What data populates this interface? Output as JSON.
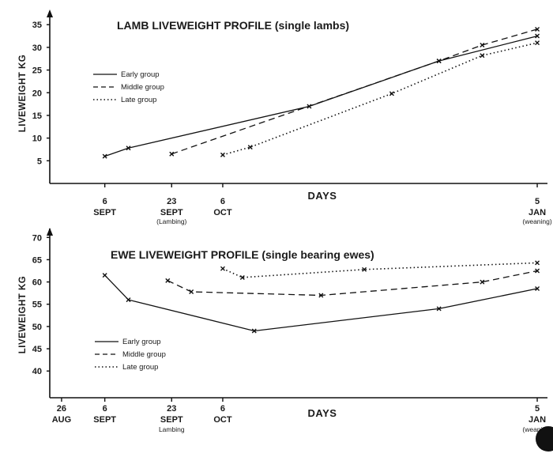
{
  "chart_data": [
    {
      "type": "line",
      "title": "LAMB LIVEWEIGHT PROFILE (single lambs)",
      "ylabel": "LIVEWEIGHT KG",
      "xlabel": "DAYS",
      "ylim": [
        0,
        38
      ],
      "yticks": [
        5,
        10,
        15,
        20,
        25,
        30,
        35
      ],
      "xlim": [
        -3,
        123
      ],
      "xticks": [
        {
          "x": 11,
          "label": "6",
          "label2": "SEPT",
          "sub": ""
        },
        {
          "x": 28,
          "label": "23",
          "label2": "SEPT",
          "sub": "(Lambing)"
        },
        {
          "x": 41,
          "label": "6",
          "label2": "OCT",
          "sub": ""
        },
        {
          "x": 121,
          "label": "5",
          "label2": "JAN",
          "sub": "(weaning)"
        }
      ],
      "legend": [
        "Early group",
        "Middle group",
        "Late group"
      ],
      "series": [
        {
          "name": "Early group",
          "style": "solid",
          "x": [
            11,
            17,
            63,
            96,
            121
          ],
          "y": [
            6,
            7.8,
            17,
            27,
            32.5
          ]
        },
        {
          "name": "Middle group",
          "style": "dashed",
          "x": [
            28,
            96,
            107,
            121
          ],
          "y": [
            6.5,
            27,
            30.5,
            34
          ]
        },
        {
          "name": "Late group",
          "style": "dotted",
          "x": [
            41,
            48,
            84,
            107,
            121
          ],
          "y": [
            6.3,
            8,
            19.8,
            28.2,
            31
          ]
        }
      ]
    },
    {
      "type": "line",
      "title": "EWE LIVEWEIGHT PROFILE (single bearing ewes)",
      "ylabel": "LIVEWEIGHT KG",
      "xlabel": "DAYS",
      "ylim": [
        34,
        72
      ],
      "yticks": [
        40,
        45,
        50,
        55,
        60,
        65,
        70
      ],
      "xlim": [
        -3,
        123
      ],
      "xticks": [
        {
          "x": 0,
          "label": "26",
          "label2": "AUG",
          "sub": ""
        },
        {
          "x": 11,
          "label": "6",
          "label2": "SEPT",
          "sub": ""
        },
        {
          "x": 28,
          "label": "23",
          "label2": "SEPT",
          "sub": "Lambing"
        },
        {
          "x": 41,
          "label": "6",
          "label2": "OCT",
          "sub": ""
        },
        {
          "x": 121,
          "label": "5",
          "label2": "JAN",
          "sub": "(weaning)"
        }
      ],
      "legend": [
        "Early group",
        "Middle group",
        "Late group"
      ],
      "series": [
        {
          "name": "Early group",
          "style": "solid",
          "x": [
            11,
            17,
            49,
            96,
            121
          ],
          "y": [
            61.5,
            56,
            49,
            54,
            58.5
          ]
        },
        {
          "name": "Middle group",
          "style": "dashed",
          "x": [
            27,
            33,
            66,
            107,
            121
          ],
          "y": [
            60.3,
            57.8,
            57,
            60,
            62.5
          ]
        },
        {
          "name": "Late group",
          "style": "dotted",
          "x": [
            41,
            46,
            77,
            121
          ],
          "y": [
            63,
            61,
            62.8,
            64.3
          ]
        }
      ]
    }
  ]
}
